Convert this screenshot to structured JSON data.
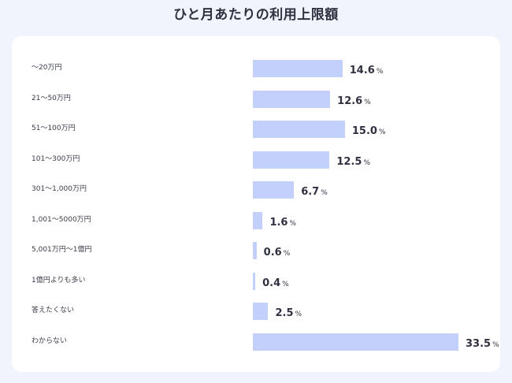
{
  "chart_data": {
    "type": "bar",
    "orientation": "horizontal",
    "title": "ひと月あたりの利用上限額",
    "unit": "%",
    "categories": [
      "〜20万円",
      "21〜50万円",
      "51〜100万円",
      "101〜300万円",
      "301〜1,000万円",
      "1,001〜5000万円",
      "5,001万円〜1億円",
      "1億円よりも多い",
      "答えたくない",
      "わからない"
    ],
    "values": [
      14.6,
      12.6,
      15.0,
      12.5,
      6.7,
      1.6,
      0.6,
      0.4,
      2.5,
      33.5
    ],
    "value_labels": [
      "14.6",
      "12.6",
      "15.0",
      "12.5",
      "6.7",
      "1.6",
      "0.6",
      "0.4",
      "2.5",
      "33.5"
    ],
    "bar_color": "#c3d0fb",
    "grid": false,
    "legend": "none"
  }
}
